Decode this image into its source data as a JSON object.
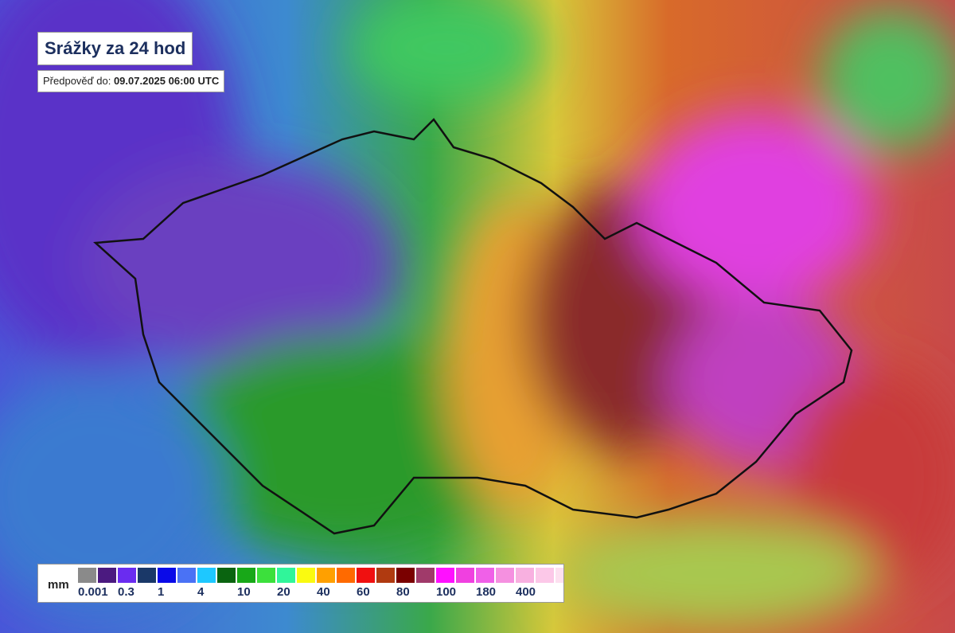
{
  "header": {
    "title": "Srážky za 24 hod",
    "forecast_label": "Předpověď do:",
    "forecast_time": "09.07.2025 06:00 UTC"
  },
  "legend": {
    "unit": "mm",
    "colors": [
      "#8a8a8a",
      "#4b1a80",
      "#6a2cf0",
      "#1a3868",
      "#0a0ae8",
      "#4a72f5",
      "#1ec8ff",
      "#0a6410",
      "#18a818",
      "#3ce03c",
      "#30f59a",
      "#fafa10",
      "#ffa000",
      "#ff6a00",
      "#f01010",
      "#b03a10",
      "#7a0000",
      "#a03a6a",
      "#ff10ff",
      "#f040e0",
      "#f060e8",
      "#f590e0",
      "#f8b0e0",
      "#fcc8e8",
      "#fde0f0"
    ],
    "labels": [
      "0.001",
      "0.3",
      "1",
      "4",
      "10",
      "20",
      "40",
      "60",
      "80",
      "100",
      "180",
      "400"
    ]
  }
}
